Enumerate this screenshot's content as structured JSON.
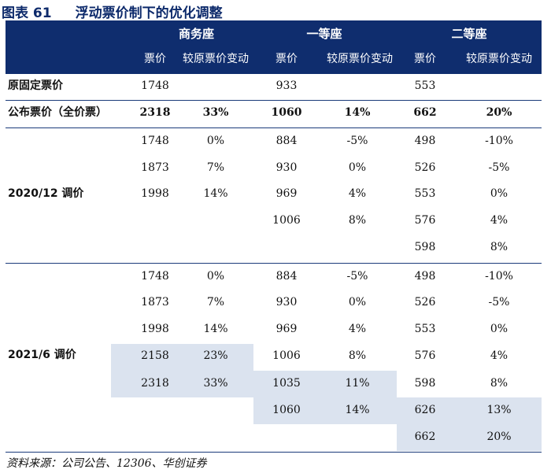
{
  "title": {
    "figure": "图表 61",
    "text": "浮动票价制下的优化调整"
  },
  "header": {
    "groups": [
      "商务座",
      "一等座",
      "二等座"
    ],
    "sub": [
      "票价",
      "较原票价变动",
      "票价",
      "较原票价变动",
      "票价",
      "较原票价变动"
    ]
  },
  "rows": {
    "original": {
      "label": "原固定票价",
      "biz": "1748",
      "first": "933",
      "second": "553"
    },
    "published": {
      "label": "公布票价（全价票）",
      "biz": "2318",
      "biz_chg": "33%",
      "first": "1060",
      "first_chg": "14%",
      "second": "662",
      "second_chg": "20%"
    }
  },
  "adj2020": {
    "label": "2020/12 调价",
    "rows": [
      [
        "1748",
        "0%",
        "884",
        "-5%",
        "498",
        "-10%"
      ],
      [
        "1873",
        "7%",
        "930",
        "0%",
        "526",
        "-5%"
      ],
      [
        "1998",
        "14%",
        "969",
        "4%",
        "553",
        "0%"
      ],
      [
        "",
        "",
        "1006",
        "8%",
        "576",
        "4%"
      ],
      [
        "",
        "",
        "",
        "",
        "598",
        "8%"
      ]
    ]
  },
  "adj2021": {
    "label": "2021/6  调价",
    "rows": [
      [
        "1748",
        "0%",
        "884",
        "-5%",
        "498",
        "-10%"
      ],
      [
        "1873",
        "7%",
        "930",
        "0%",
        "526",
        "-5%"
      ],
      [
        "1998",
        "14%",
        "969",
        "4%",
        "553",
        "0%"
      ],
      [
        "2158",
        "23%",
        "1006",
        "8%",
        "576",
        "4%"
      ],
      [
        "2318",
        "33%",
        "1035",
        "11%",
        "598",
        "8%"
      ],
      [
        "",
        "",
        "1060",
        "14%",
        "626",
        "13%"
      ],
      [
        "",
        "",
        "",
        "",
        "662",
        "20%"
      ]
    ]
  },
  "footer": "资料来源：公司公告、12306、华创证券"
}
